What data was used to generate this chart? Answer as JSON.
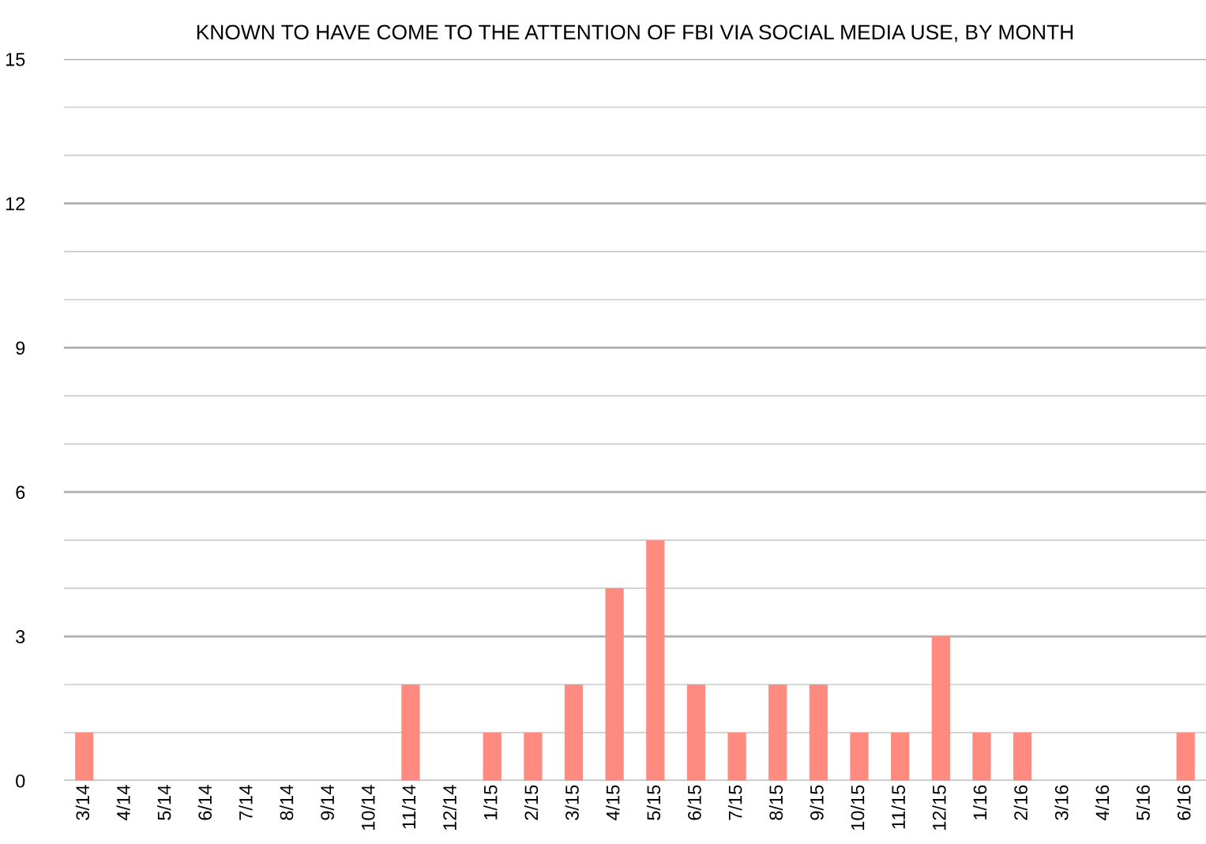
{
  "chart_data": {
    "type": "bar",
    "title": "KNOWN TO HAVE COME TO THE ATTENTION OF FBI VIA SOCIAL MEDIA USE, BY MONTH",
    "categories": [
      "3/14",
      "4/14",
      "5/14",
      "6/14",
      "7/14",
      "8/14",
      "9/14",
      "10/14",
      "11/14",
      "12/14",
      "1/15",
      "2/15",
      "3/15",
      "4/15",
      "5/15",
      "6/15",
      "7/15",
      "8/15",
      "9/15",
      "10/15",
      "11/15",
      "12/15",
      "1/16",
      "2/16",
      "3/16",
      "4/16",
      "5/16",
      "6/16"
    ],
    "values": [
      1,
      0,
      0,
      0,
      0,
      0,
      0,
      0,
      2,
      0,
      1,
      1,
      2,
      4,
      5,
      2,
      1,
      2,
      2,
      1,
      1,
      3,
      1,
      1,
      0,
      0,
      0,
      1
    ],
    "color": "#ff8a80",
    "ylim": [
      0,
      15
    ],
    "yticks": [
      0,
      {
        "value": 1,
        "label": null
      },
      {
        "value": 2,
        "label": null
      },
      3,
      {
        "value": 4,
        "label": null
      },
      {
        "value": 5,
        "label": null
      },
      6,
      {
        "value": 7,
        "label": null
      },
      {
        "value": 8,
        "label": null
      },
      9,
      {
        "value": 10,
        "label": null
      },
      {
        "value": 11,
        "label": null
      },
      12,
      {
        "value": 13,
        "label": null
      },
      {
        "value": 14,
        "label": null
      },
      15
    ],
    "grid": "y"
  }
}
